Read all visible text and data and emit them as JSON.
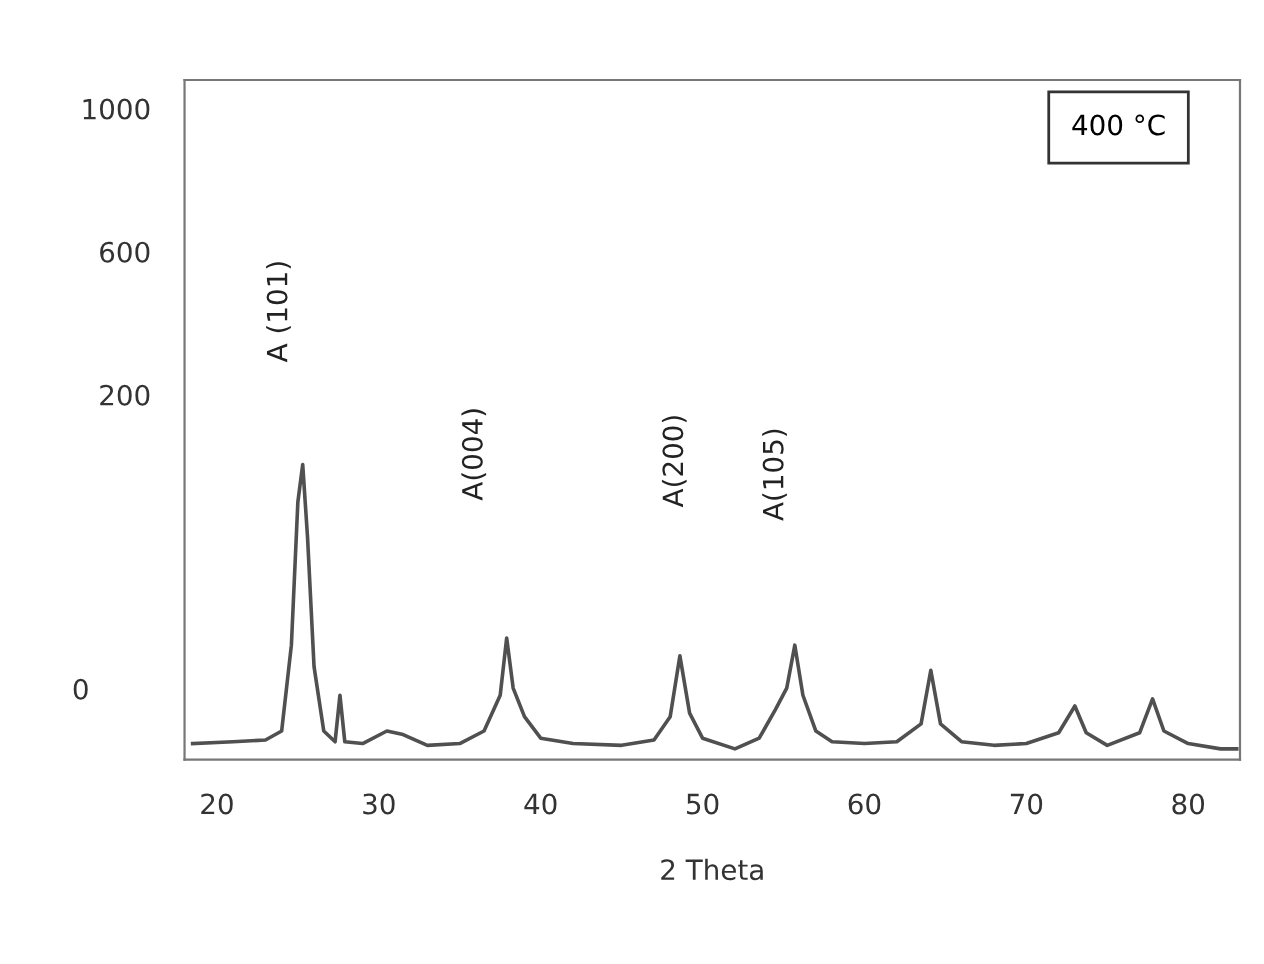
{
  "chart_data": {
    "type": "line",
    "xlabel": "2 Theta",
    "x": [
      18.5,
      21,
      23,
      24,
      24.6,
      25.0,
      25.3,
      25.6,
      26,
      26.6,
      27.3,
      27.6,
      27.9,
      29,
      30.5,
      31.5,
      33,
      35,
      36.5,
      37.5,
      37.9,
      38.3,
      39,
      40,
      42,
      45,
      47,
      48,
      48.6,
      49.2,
      50,
      52,
      53.5,
      54.5,
      55.2,
      55.7,
      56.2,
      57,
      58,
      60,
      62,
      63.5,
      64.1,
      64.7,
      66,
      68,
      70,
      72,
      73,
      73.7,
      75,
      77,
      77.8,
      78.5,
      80,
      82,
      83
    ],
    "series": [
      {
        "color": "#505050",
        "values": [
          -775,
          -770,
          -765,
          -740,
          -500,
          -100,
          5,
          -200,
          -560,
          -740,
          -770,
          -640,
          -770,
          -775,
          -740,
          -750,
          -780,
          -775,
          -740,
          -640,
          -480,
          -620,
          -700,
          -760,
          -775,
          -780,
          -765,
          -700,
          -530,
          -690,
          -760,
          -790,
          -760,
          -680,
          -620,
          -500,
          -640,
          -740,
          -770,
          -775,
          -770,
          -720,
          -570,
          -720,
          -770,
          -780,
          -775,
          -745,
          -670,
          -745,
          -780,
          -745,
          -650,
          -740,
          -775,
          -790,
          -790
        ]
      }
    ],
    "xlim": [
      18,
      83.2
    ],
    "xticks": [
      20,
      30,
      40,
      50,
      60,
      70,
      80
    ],
    "ylim": [
      -820,
      1080
    ],
    "yticks": [
      200,
      600,
      1000
    ],
    "annotations": [
      "A (101)",
      "A(004)",
      "A(200)",
      "A(105)",
      "400 °C",
      "0"
    ],
    "grid": false,
    "legend": false,
    "marker": "none",
    "line_style": "solid"
  }
}
